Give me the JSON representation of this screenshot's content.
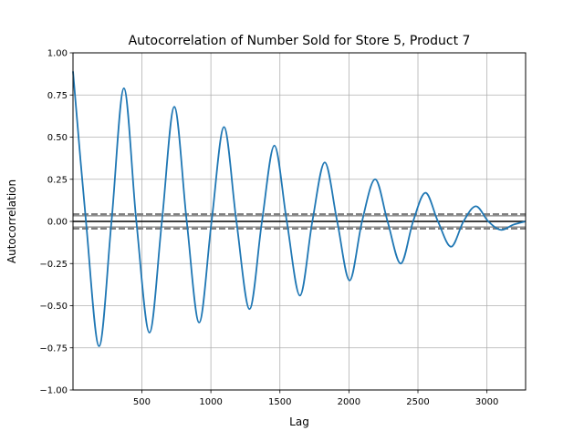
{
  "chart_data": {
    "type": "line",
    "title": "Autocorrelation of Number Sold for Store 5, Product 7",
    "xlabel": "Lag",
    "ylabel": "Autocorrelation",
    "xlim": [
      1,
      3280
    ],
    "ylim": [
      -1.0,
      1.0
    ],
    "xticks": [
      500,
      1000,
      1500,
      2000,
      2500,
      3000
    ],
    "xtick_labels": [
      "500",
      "1000",
      "1500",
      "2000",
      "2500",
      "3000"
    ],
    "yticks": [
      -1.0,
      -0.75,
      -0.5,
      -0.25,
      0.0,
      0.25,
      0.5,
      0.75,
      1.0
    ],
    "ytick_labels": [
      "−1.00",
      "−0.75",
      "−0.50",
      "−0.25",
      "0.00",
      "0.25",
      "0.50",
      "0.75",
      "1.00"
    ],
    "grid": true,
    "series": [
      {
        "color": "#1f77b4",
        "x": [
          1,
          95,
          190,
          280,
          370,
          460,
          555,
          645,
          735,
          825,
          915,
          1005,
          1095,
          1185,
          1280,
          1370,
          1460,
          1550,
          1645,
          1735,
          1825,
          1915,
          2005,
          2095,
          2190,
          2280,
          2375,
          2465,
          2555,
          2645,
          2740,
          2830,
          2920,
          3010,
          3100,
          3190,
          3280
        ],
        "y": [
          0.89,
          0.0,
          -0.74,
          0.0,
          0.79,
          0.0,
          -0.66,
          0.0,
          0.68,
          0.0,
          -0.6,
          0.0,
          0.56,
          0.0,
          -0.52,
          0.0,
          0.45,
          0.0,
          -0.44,
          0.0,
          0.35,
          0.0,
          -0.35,
          0.0,
          0.25,
          0.0,
          -0.25,
          0.0,
          0.17,
          0.0,
          -0.15,
          0.0,
          0.09,
          0.0,
          -0.05,
          -0.02,
          0.0
        ]
      }
    ],
    "reference_lines": [
      {
        "y": 0.0,
        "color": "#000000",
        "style": "solid"
      },
      {
        "y": 0.0425,
        "color": "#808080",
        "style": "dashed"
      },
      {
        "y": -0.0425,
        "color": "#808080",
        "style": "dashed"
      },
      {
        "y": 0.033,
        "color": "#808080",
        "style": "solid"
      },
      {
        "y": -0.033,
        "color": "#808080",
        "style": "solid"
      }
    ]
  }
}
